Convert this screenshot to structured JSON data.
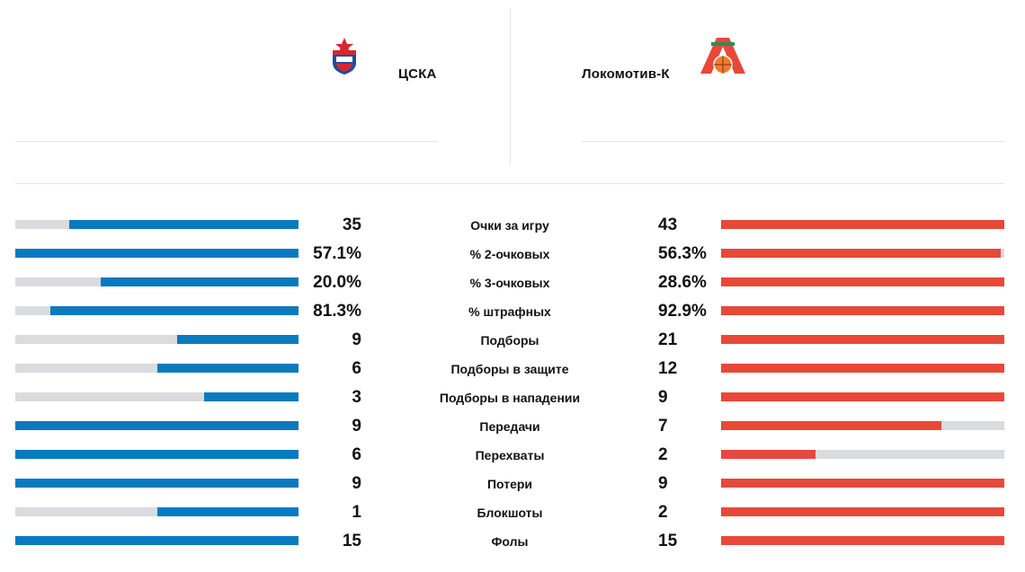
{
  "teams": {
    "home": {
      "name": "ЦСКА",
      "color": "#0a7abf",
      "logo": "cska-logo-icon"
    },
    "away": {
      "name": "Локомотив-К",
      "color": "#e8483a",
      "logo": "lokomotiv-logo-icon"
    }
  },
  "stats": [
    {
      "label": "Очки за игру",
      "home": "35",
      "away": "43",
      "home_share": 0.81,
      "away_share": 1.0
    },
    {
      "label": "% 2-очковых",
      "home": "57.1%",
      "away": "56.3%",
      "home_share": 1.0,
      "away_share": 0.986
    },
    {
      "label": "% 3-очковых",
      "home": "20.0%",
      "away": "28.6%",
      "home_share": 0.7,
      "away_share": 1.0
    },
    {
      "label": "% штрафных",
      "home": "81.3%",
      "away": "92.9%",
      "home_share": 0.875,
      "away_share": 1.0
    },
    {
      "label": "Подборы",
      "home": "9",
      "away": "21",
      "home_share": 0.429,
      "away_share": 1.0
    },
    {
      "label": "Подборы в защите",
      "home": "6",
      "away": "12",
      "home_share": 0.5,
      "away_share": 1.0
    },
    {
      "label": "Подборы в нападении",
      "home": "3",
      "away": "9",
      "home_share": 0.333,
      "away_share": 1.0
    },
    {
      "label": "Передачи",
      "home": "9",
      "away": "7",
      "home_share": 1.0,
      "away_share": 0.778
    },
    {
      "label": "Перехваты",
      "home": "6",
      "away": "2",
      "home_share": 1.0,
      "away_share": 0.333
    },
    {
      "label": "Потери",
      "home": "9",
      "away": "9",
      "home_share": 1.0,
      "away_share": 1.0
    },
    {
      "label": "Блокшоты",
      "home": "1",
      "away": "2",
      "home_share": 0.5,
      "away_share": 1.0
    },
    {
      "label": "Фолы",
      "home": "15",
      "away": "15",
      "home_share": 1.0,
      "away_share": 1.0
    }
  ]
}
